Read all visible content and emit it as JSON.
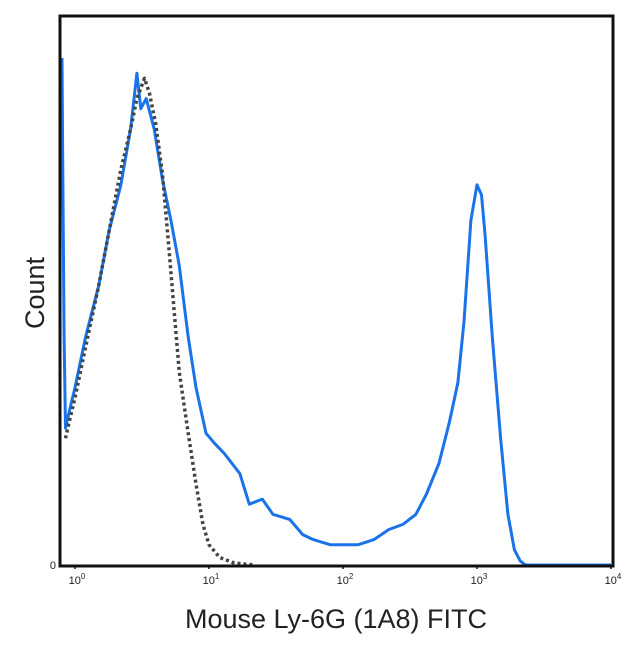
{
  "chart_data": {
    "type": "line",
    "title": "",
    "xlabel": "Mouse Ly-6G (1A8) FITC",
    "ylabel": "Count",
    "x_scale": "log",
    "xlim": [
      0.8,
      10000
    ],
    "ylim": [
      0,
      100
    ],
    "grid": false,
    "x_ticks": [
      {
        "value": 1,
        "base": "10",
        "exp": "0"
      },
      {
        "value": 10,
        "base": "10",
        "exp": "1"
      },
      {
        "value": 100,
        "base": "10",
        "exp": "2"
      },
      {
        "value": 1000,
        "base": "10",
        "exp": "3"
      },
      {
        "value": 10000,
        "base": "10",
        "exp": "4"
      }
    ],
    "y_ticks": [
      {
        "value": 0,
        "label": "0"
      }
    ],
    "series": [
      {
        "color": "#1a73e8",
        "line_style": "solid",
        "x": [
          0.8,
          0.81,
          0.83,
          0.85,
          0.9,
          1.0,
          1.2,
          1.5,
          1.8,
          2.2,
          2.6,
          2.9,
          3.1,
          3.4,
          3.9,
          4.5,
          5.2,
          6.0,
          7.0,
          8.0,
          9.5,
          11,
          13,
          17,
          20,
          25,
          30,
          40,
          50,
          60,
          80,
          100,
          130,
          170,
          220,
          280,
          350,
          420,
          520,
          620,
          720,
          800,
          900,
          1000,
          1080,
          1150,
          1300,
          1500,
          1700,
          1900,
          2100,
          2300,
          2600,
          3000,
          4000,
          6000,
          8000,
          10000
        ],
        "y": [
          100,
          80,
          45,
          27,
          30,
          35,
          45,
          55,
          66,
          75,
          86,
          97,
          90,
          92,
          86,
          76,
          68,
          59,
          45,
          35,
          26,
          24,
          22,
          18,
          12,
          13,
          10,
          9,
          6,
          5,
          4,
          4,
          4,
          5,
          7,
          8,
          10,
          14,
          20,
          28,
          36,
          48,
          68,
          75,
          73,
          65,
          45,
          25,
          10,
          3,
          0.8,
          0,
          0,
          0,
          0,
          0,
          0,
          0
        ]
      },
      {
        "color": "#444444",
        "line_style": "dotted",
        "x": [
          0.85,
          0.9,
          1.0,
          1.2,
          1.5,
          1.8,
          2.2,
          2.6,
          2.9,
          3.3,
          3.6,
          4.0,
          4.5,
          5.0,
          5.5,
          6.0,
          7.0,
          8.0,
          9.0,
          10,
          12,
          15,
          18,
          22
        ],
        "y": [
          25,
          28,
          33,
          43,
          55,
          66,
          78,
          86,
          92,
          96,
          93,
          87,
          77,
          63,
          50,
          38,
          26,
          16,
          8,
          4,
          1.5,
          0.5,
          0.2,
          0
        ]
      }
    ]
  }
}
